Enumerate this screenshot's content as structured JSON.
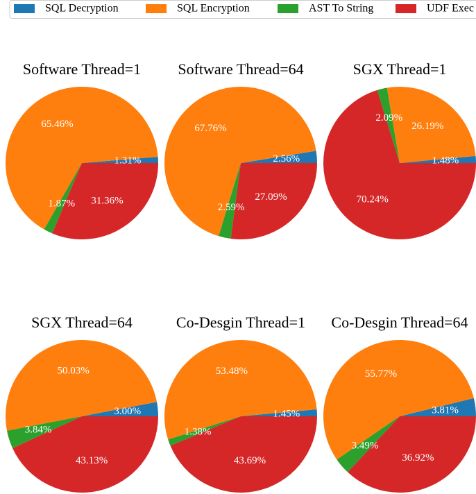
{
  "chart_data": [
    {
      "type": "pie",
      "title": "Software Thread=1",
      "categories": [
        "SQL Decryption",
        "SQL Encryption",
        "AST To String",
        "UDF Exec"
      ],
      "colors": [
        "#1f77b4",
        "#ff7f0e",
        "#2ca02c",
        "#d62728"
      ],
      "values": [
        1.31,
        65.46,
        1.87,
        31.36
      ],
      "value_labels": [
        "1.31%",
        "65.46%",
        "1.87%",
        "31.36%"
      ],
      "legend": "top"
    },
    {
      "type": "pie",
      "title": "Software Thread=64",
      "categories": [
        "SQL Decryption",
        "SQL Encryption",
        "AST To String",
        "UDF Exec"
      ],
      "colors": [
        "#1f77b4",
        "#ff7f0e",
        "#2ca02c",
        "#d62728"
      ],
      "values": [
        2.56,
        67.76,
        2.59,
        27.09
      ],
      "value_labels": [
        "2.56%",
        "67.76%",
        "2.59%",
        "27.09%"
      ]
    },
    {
      "type": "pie",
      "title": "SGX Thread=1",
      "categories": [
        "SQL Decryption",
        "SQL Encryption",
        "AST To String",
        "UDF Exec"
      ],
      "colors": [
        "#1f77b4",
        "#ff7f0e",
        "#2ca02c",
        "#d62728"
      ],
      "values": [
        1.48,
        26.19,
        2.09,
        70.24
      ],
      "value_labels": [
        "1.48%",
        "26.19%",
        "2.09%",
        "70.24%"
      ]
    },
    {
      "type": "pie",
      "title": "SGX Thread=64",
      "categories": [
        "SQL Decryption",
        "SQL Encryption",
        "AST To String",
        "UDF Exec"
      ],
      "colors": [
        "#1f77b4",
        "#ff7f0e",
        "#2ca02c",
        "#d62728"
      ],
      "values": [
        3.0,
        50.03,
        3.84,
        43.13
      ],
      "value_labels": [
        "3.00%",
        "50.03%",
        "3.84%",
        "43.13%"
      ]
    },
    {
      "type": "pie",
      "title": "Co-Desgin Thread=1",
      "categories": [
        "SQL Decryption",
        "SQL Encryption",
        "AST To String",
        "UDF Exec"
      ],
      "colors": [
        "#1f77b4",
        "#ff7f0e",
        "#2ca02c",
        "#d62728"
      ],
      "values": [
        1.45,
        53.48,
        1.38,
        43.69
      ],
      "value_labels": [
        "1.45%",
        "53.48%",
        "1.38%",
        "43.69%"
      ]
    },
    {
      "type": "pie",
      "title": "Co-Desgin Thread=64",
      "categories": [
        "SQL Decryption",
        "SQL Encryption",
        "AST To String",
        "UDF Exec"
      ],
      "colors": [
        "#1f77b4",
        "#ff7f0e",
        "#2ca02c",
        "#d62728"
      ],
      "values": [
        3.81,
        55.77,
        3.49,
        36.92
      ],
      "value_labels": [
        "3.81%",
        "55.77%",
        "3.49%",
        "36.92%"
      ]
    }
  ]
}
